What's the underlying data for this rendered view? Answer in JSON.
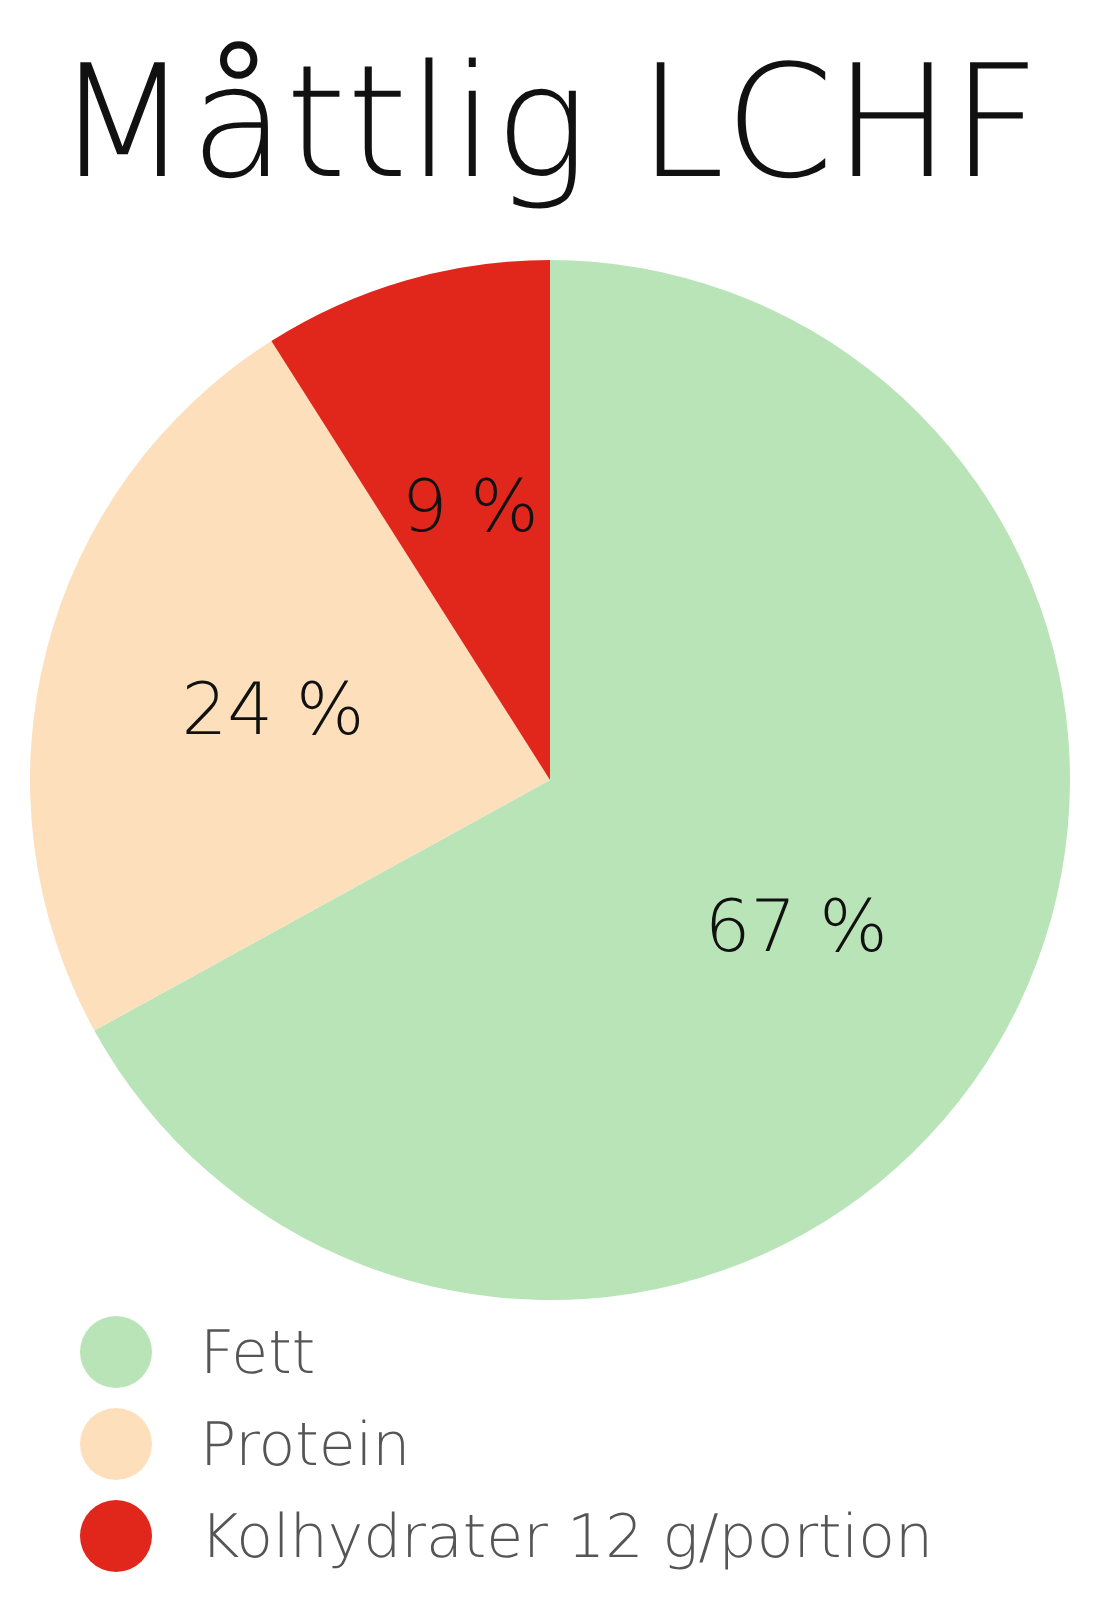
{
  "chart_data": {
    "type": "pie",
    "title": "Måttlig LCHF",
    "categories": [
      "Fett",
      "Protein",
      "Kolhydrater 12 g/portion"
    ],
    "values": [
      67,
      24,
      9
    ],
    "colors": [
      "#b9e4b7",
      "#fde0bb",
      "#e1261c"
    ],
    "value_labels": [
      "67 %",
      "24 %",
      "9 %"
    ],
    "legend": "bottom left"
  }
}
